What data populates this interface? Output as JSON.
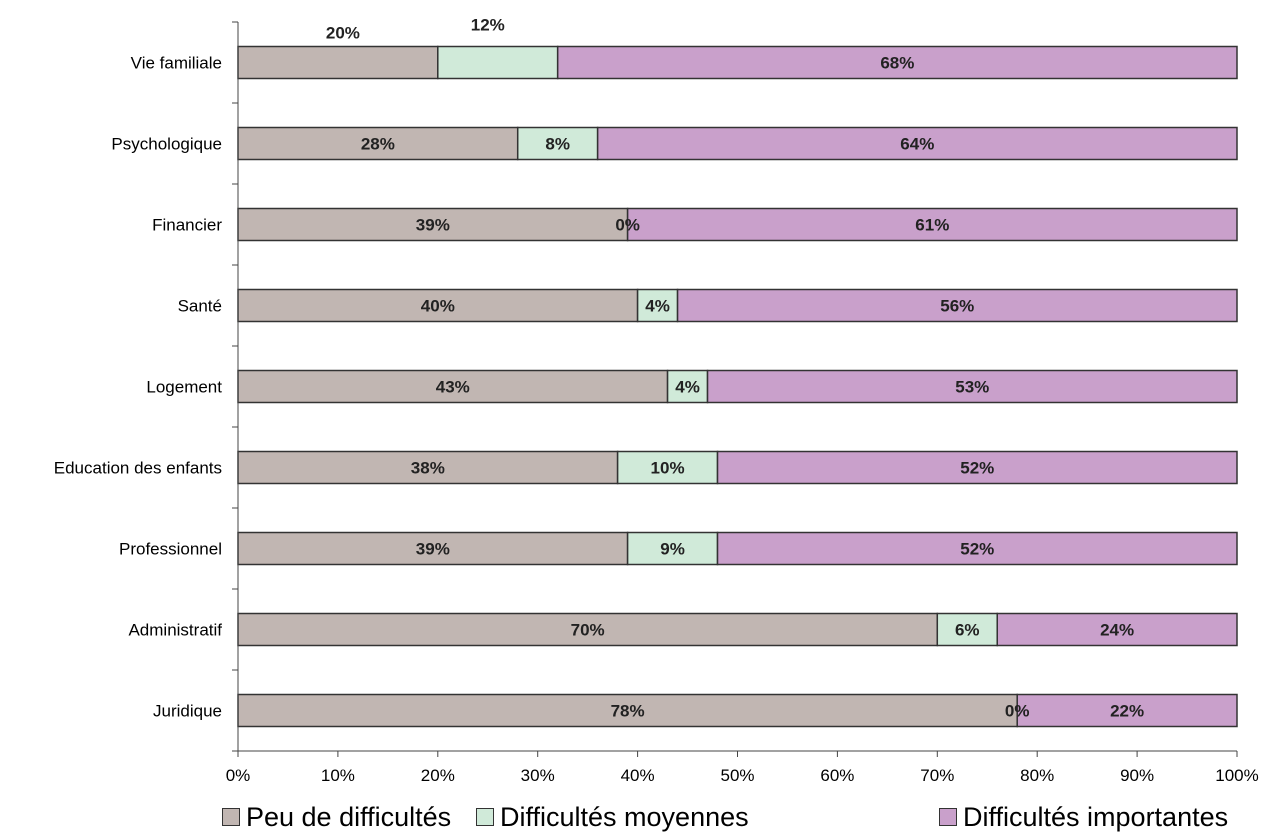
{
  "chart_data": {
    "type": "bar",
    "orientation": "horizontal",
    "stacked": true,
    "categories": [
      "Vie familiale",
      "Psychologique",
      "Financier",
      "Santé",
      "Logement",
      "Education des enfants",
      "Professionnel",
      "Administratif",
      "Juridique"
    ],
    "series": [
      {
        "name": "Peu de difficultés",
        "color": "#c1b6b2",
        "values": [
          20,
          28,
          39,
          40,
          43,
          38,
          39,
          70,
          78
        ],
        "labels": [
          "20%",
          "28%",
          "39%",
          "40%",
          "43%",
          "38%",
          "39%",
          "70%",
          "78%"
        ]
      },
      {
        "name": "Difficultés moyennes",
        "color": "#d0ead9",
        "values": [
          12,
          8,
          0,
          4,
          4,
          10,
          9,
          6,
          0
        ],
        "labels": [
          "12%",
          "8%",
          "0%",
          "4%",
          "4%",
          "10%",
          "9%",
          "6%",
          "0%"
        ]
      },
      {
        "name": "Difficultés importantes",
        "color": "#c9a0cb",
        "values": [
          68,
          64,
          61,
          56,
          53,
          52,
          52,
          24,
          22
        ],
        "labels": [
          "68%",
          "64%",
          "61%",
          "56%",
          "53%",
          "52%",
          "52%",
          "24%",
          "22%"
        ]
      }
    ],
    "xlim": [
      0,
      100
    ],
    "xticks": [
      "0%",
      "10%",
      "20%",
      "30%",
      "40%",
      "50%",
      "60%",
      "70%",
      "80%",
      "90%",
      "100%"
    ],
    "grid": false,
    "legend_position": "bottom"
  }
}
